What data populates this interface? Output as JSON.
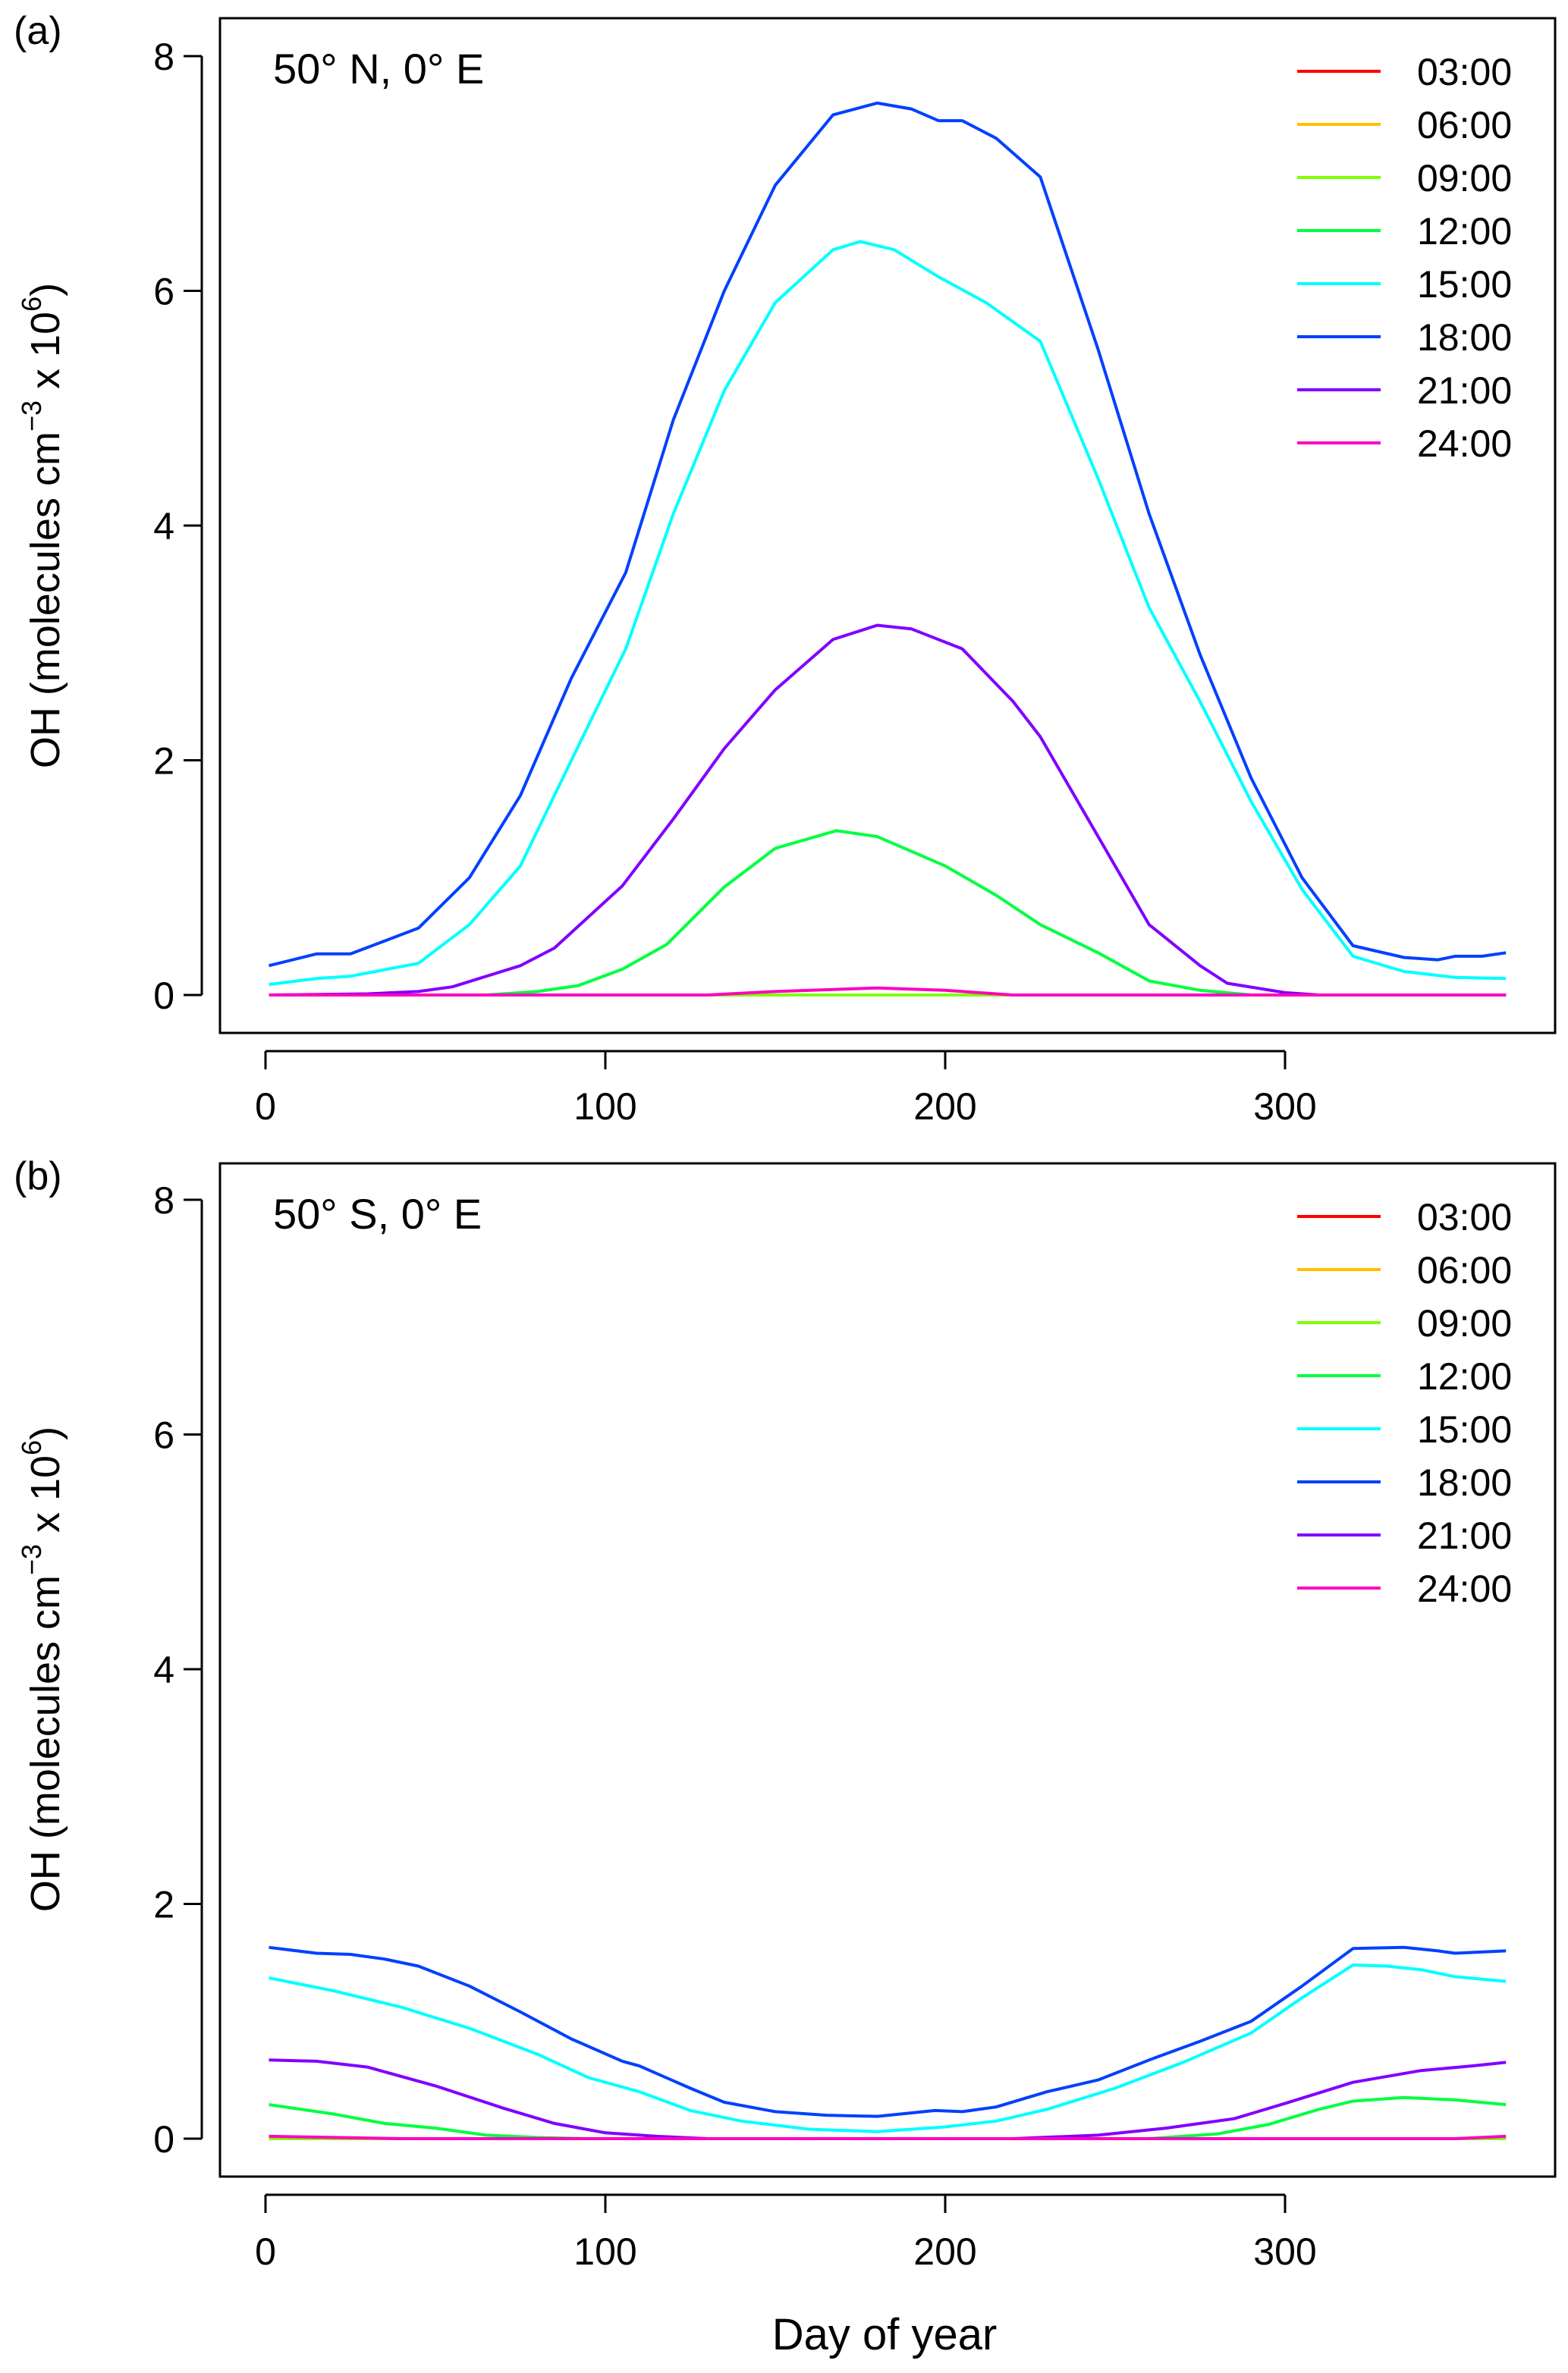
{
  "chart_data": [
    {
      "type": "line",
      "panel_label": "(a)",
      "title": "50° N, 0° E",
      "xlabel": "",
      "ylabel": {
        "main": "OH (molecules cm",
        "sup1": "−3",
        "mid": " x 10",
        "sup2": "6",
        "end": ")"
      },
      "xlim": [
        0,
        365
      ],
      "ylim": [
        0,
        8
      ],
      "xticks": [
        0,
        100,
        200,
        300
      ],
      "yticks": [
        0,
        2,
        4,
        6,
        8
      ],
      "legend_position": "top-right",
      "series": [
        {
          "name": "03:00",
          "color": "#FF0000",
          "points": [
            [
              1,
              0
            ],
            [
              365,
              0
            ]
          ]
        },
        {
          "name": "06:00",
          "color": "#FFBF00",
          "points": [
            [
              1,
              0
            ],
            [
              365,
              0
            ]
          ]
        },
        {
          "name": "09:00",
          "color": "#80FF00",
          "points": [
            [
              1,
              0
            ],
            [
              365,
              0
            ]
          ]
        },
        {
          "name": "12:00",
          "color": "#00FF40",
          "points": [
            [
              1,
              0
            ],
            [
              65,
              0
            ],
            [
              80,
              0.03
            ],
            [
              92,
              0.08
            ],
            [
              105,
              0.22
            ],
            [
              118,
              0.43
            ],
            [
              135,
              0.92
            ],
            [
              150,
              1.25
            ],
            [
              168,
              1.4
            ],
            [
              180,
              1.35
            ],
            [
              200,
              1.1
            ],
            [
              215,
              0.85
            ],
            [
              228,
              0.6
            ],
            [
              245,
              0.36
            ],
            [
              260,
              0.12
            ],
            [
              275,
              0.04
            ],
            [
              290,
              0
            ],
            [
              365,
              0
            ]
          ]
        },
        {
          "name": "15:00",
          "color": "#00FFFF",
          "points": [
            [
              1,
              0.09
            ],
            [
              15,
              0.14
            ],
            [
              25,
              0.16
            ],
            [
              45,
              0.27
            ],
            [
              60,
              0.6
            ],
            [
              75,
              1.1
            ],
            [
              90,
              2.0
            ],
            [
              106,
              2.95
            ],
            [
              120,
              4.1
            ],
            [
              135,
              5.15
            ],
            [
              150,
              5.9
            ],
            [
              167,
              6.35
            ],
            [
              175,
              6.42
            ],
            [
              185,
              6.35
            ],
            [
              198,
              6.12
            ],
            [
              212,
              5.9
            ],
            [
              228,
              5.57
            ],
            [
              245,
              4.4
            ],
            [
              260,
              3.3
            ],
            [
              275,
              2.5
            ],
            [
              290,
              1.65
            ],
            [
              305,
              0.9
            ],
            [
              320,
              0.33
            ],
            [
              335,
              0.2
            ],
            [
              350,
              0.15
            ],
            [
              365,
              0.14
            ]
          ]
        },
        {
          "name": "18:00",
          "color": "#0040FF",
          "points": [
            [
              1,
              0.25
            ],
            [
              15,
              0.35
            ],
            [
              25,
              0.35
            ],
            [
              45,
              0.57
            ],
            [
              60,
              1.0
            ],
            [
              75,
              1.7
            ],
            [
              90,
              2.7
            ],
            [
              106,
              3.6
            ],
            [
              120,
              4.9
            ],
            [
              135,
              6.0
            ],
            [
              150,
              6.9
            ],
            [
              167,
              7.5
            ],
            [
              180,
              7.6
            ],
            [
              190,
              7.55
            ],
            [
              198,
              7.45
            ],
            [
              205,
              7.45
            ],
            [
              215,
              7.3
            ],
            [
              228,
              6.97
            ],
            [
              245,
              5.5
            ],
            [
              260,
              4.1
            ],
            [
              275,
              2.9
            ],
            [
              290,
              1.85
            ],
            [
              305,
              1.0
            ],
            [
              320,
              0.42
            ],
            [
              335,
              0.32
            ],
            [
              345,
              0.3
            ],
            [
              350,
              0.33
            ],
            [
              358,
              0.33
            ],
            [
              365,
              0.36
            ]
          ]
        },
        {
          "name": "21:00",
          "color": "#8000FF",
          "points": [
            [
              1,
              0
            ],
            [
              30,
              0.01
            ],
            [
              45,
              0.03
            ],
            [
              55,
              0.07
            ],
            [
              75,
              0.25
            ],
            [
              85,
              0.4
            ],
            [
              105,
              0.93
            ],
            [
              120,
              1.5
            ],
            [
              135,
              2.1
            ],
            [
              150,
              2.6
            ],
            [
              167,
              3.03
            ],
            [
              180,
              3.15
            ],
            [
              190,
              3.12
            ],
            [
              205,
              2.95
            ],
            [
              220,
              2.5
            ],
            [
              228,
              2.2
            ],
            [
              245,
              1.35
            ],
            [
              260,
              0.6
            ],
            [
              275,
              0.25
            ],
            [
              283,
              0.1
            ],
            [
              300,
              0.02
            ],
            [
              310,
              0
            ],
            [
              365,
              0
            ]
          ]
        },
        {
          "name": "24:00",
          "color": "#FF00BF",
          "points": [
            [
              1,
              0
            ],
            [
              130,
              0
            ],
            [
              150,
              0.03
            ],
            [
              180,
              0.06
            ],
            [
              200,
              0.04
            ],
            [
              220,
              0
            ],
            [
              365,
              0
            ]
          ]
        }
      ]
    },
    {
      "type": "line",
      "panel_label": "(b)",
      "title": "50° S, 0° E",
      "xlabel": "Day of year",
      "ylabel": {
        "main": "OH (molecules cm",
        "sup1": "−3",
        "mid": " x 10",
        "sup2": "6",
        "end": ")"
      },
      "xlim": [
        0,
        365
      ],
      "ylim": [
        0,
        8
      ],
      "xticks": [
        0,
        100,
        200,
        300
      ],
      "yticks": [
        0,
        2,
        4,
        6,
        8
      ],
      "legend_position": "top-right",
      "series": [
        {
          "name": "03:00",
          "color": "#FF0000",
          "points": [
            [
              1,
              0
            ],
            [
              365,
              0
            ]
          ]
        },
        {
          "name": "06:00",
          "color": "#FFBF00",
          "points": [
            [
              1,
              0
            ],
            [
              365,
              0
            ]
          ]
        },
        {
          "name": "09:00",
          "color": "#80FF00",
          "points": [
            [
              1,
              0
            ],
            [
              365,
              0
            ]
          ]
        },
        {
          "name": "12:00",
          "color": "#00FF40",
          "points": [
            [
              1,
              0.29
            ],
            [
              20,
              0.21
            ],
            [
              35,
              0.13
            ],
            [
              50,
              0.09
            ],
            [
              65,
              0.03
            ],
            [
              80,
              0.01
            ],
            [
              95,
              0
            ],
            [
              260,
              0
            ],
            [
              280,
              0.04
            ],
            [
              295,
              0.12
            ],
            [
              310,
              0.25
            ],
            [
              320,
              0.32
            ],
            [
              335,
              0.35
            ],
            [
              350,
              0.33
            ],
            [
              365,
              0.29
            ]
          ]
        },
        {
          "name": "15:00",
          "color": "#00FFFF",
          "points": [
            [
              1,
              1.37
            ],
            [
              20,
              1.26
            ],
            [
              40,
              1.12
            ],
            [
              60,
              0.94
            ],
            [
              80,
              0.72
            ],
            [
              95,
              0.52
            ],
            [
              110,
              0.4
            ],
            [
              125,
              0.24
            ],
            [
              140,
              0.15
            ],
            [
              160,
              0.08
            ],
            [
              180,
              0.06
            ],
            [
              200,
              0.1
            ],
            [
              215,
              0.15
            ],
            [
              230,
              0.25
            ],
            [
              250,
              0.43
            ],
            [
              270,
              0.65
            ],
            [
              290,
              0.9
            ],
            [
              305,
              1.2
            ],
            [
              320,
              1.48
            ],
            [
              330,
              1.47
            ],
            [
              340,
              1.44
            ],
            [
              350,
              1.38
            ],
            [
              365,
              1.34
            ]
          ]
        },
        {
          "name": "18:00",
          "color": "#0040FF",
          "points": [
            [
              1,
              1.63
            ],
            [
              15,
              1.58
            ],
            [
              25,
              1.57
            ],
            [
              35,
              1.53
            ],
            [
              45,
              1.47
            ],
            [
              60,
              1.3
            ],
            [
              75,
              1.08
            ],
            [
              90,
              0.85
            ],
            [
              105,
              0.66
            ],
            [
              110,
              0.62
            ],
            [
              125,
              0.43
            ],
            [
              135,
              0.31
            ],
            [
              150,
              0.23
            ],
            [
              165,
              0.2
            ],
            [
              180,
              0.19
            ],
            [
              197,
              0.24
            ],
            [
              205,
              0.23
            ],
            [
              215,
              0.27
            ],
            [
              230,
              0.4
            ],
            [
              245,
              0.5
            ],
            [
              260,
              0.67
            ],
            [
              275,
              0.83
            ],
            [
              290,
              1.0
            ],
            [
              305,
              1.3
            ],
            [
              320,
              1.62
            ],
            [
              335,
              1.63
            ],
            [
              345,
              1.6
            ],
            [
              350,
              1.58
            ],
            [
              365,
              1.6
            ]
          ]
        },
        {
          "name": "21:00",
          "color": "#8000FF",
          "points": [
            [
              1,
              0.67
            ],
            [
              15,
              0.66
            ],
            [
              30,
              0.61
            ],
            [
              50,
              0.45
            ],
            [
              70,
              0.26
            ],
            [
              85,
              0.13
            ],
            [
              100,
              0.05
            ],
            [
              115,
              0.02
            ],
            [
              130,
              0
            ],
            [
              220,
              0
            ],
            [
              245,
              0.03
            ],
            [
              265,
              0.09
            ],
            [
              285,
              0.17
            ],
            [
              300,
              0.3
            ],
            [
              320,
              0.48
            ],
            [
              340,
              0.58
            ],
            [
              355,
              0.62
            ],
            [
              365,
              0.65
            ]
          ]
        },
        {
          "name": "24:00",
          "color": "#FF00BF",
          "points": [
            [
              1,
              0.02
            ],
            [
              40,
              0
            ],
            [
              350,
              0
            ],
            [
              365,
              0.02
            ]
          ]
        }
      ]
    }
  ]
}
